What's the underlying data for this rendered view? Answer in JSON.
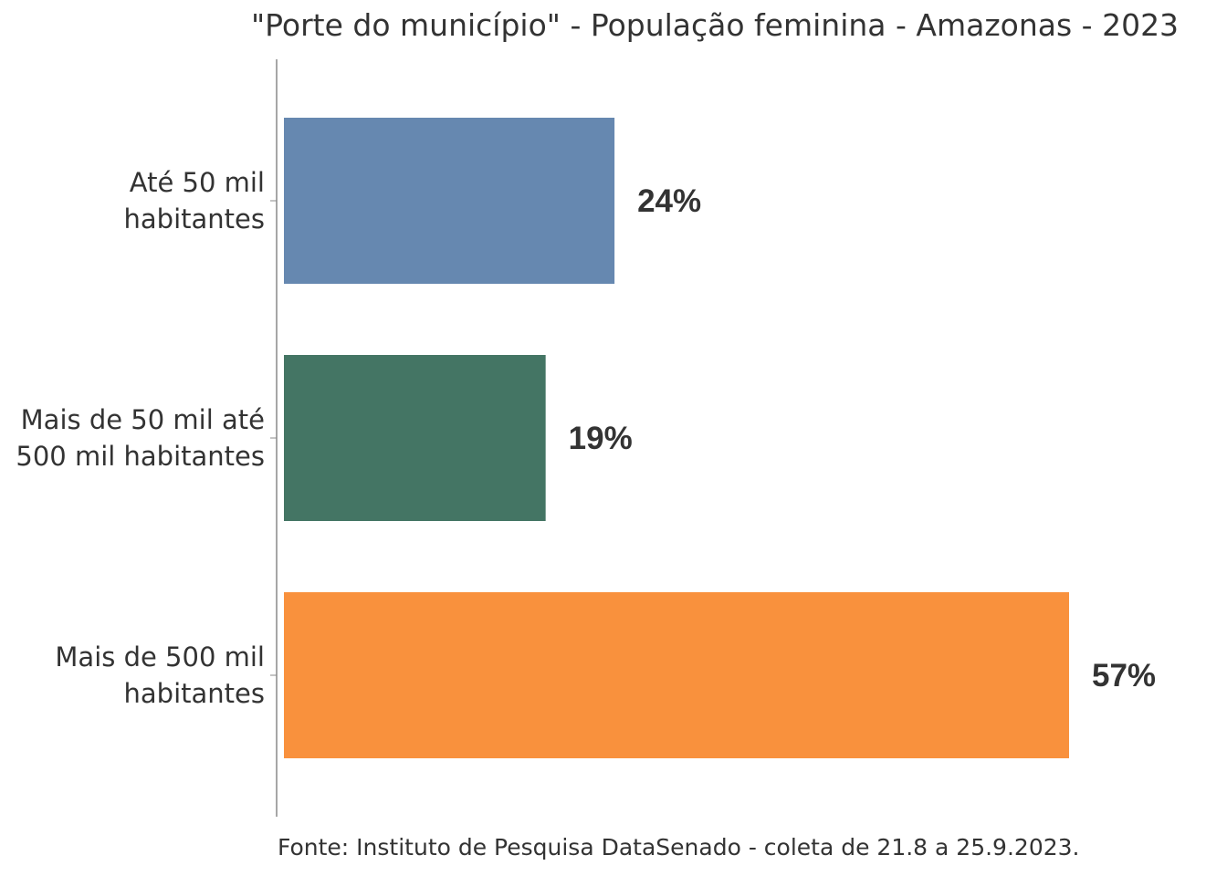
{
  "chart_data": {
    "type": "bar",
    "orientation": "horizontal",
    "title": "\"Porte do município\" - População feminina - Amazonas - 2023",
    "categories": [
      [
        "Até 50 mil",
        "habitantes"
      ],
      [
        "Mais de 50 mil até",
        "500 mil habitantes"
      ],
      [
        "Mais de 500 mil",
        "habitantes"
      ]
    ],
    "values": [
      24,
      19,
      57
    ],
    "data_labels": [
      "24%",
      "19%",
      "57%"
    ],
    "colors": [
      "#6688b0",
      "#447564",
      "#f9913d"
    ],
    "xlabel": "",
    "ylabel": "",
    "xlim": [
      0,
      57
    ],
    "grid": false,
    "source": "Fonte: Instituto de Pesquisa DataSenado - coleta de 21.8 a 25.9.2023."
  }
}
